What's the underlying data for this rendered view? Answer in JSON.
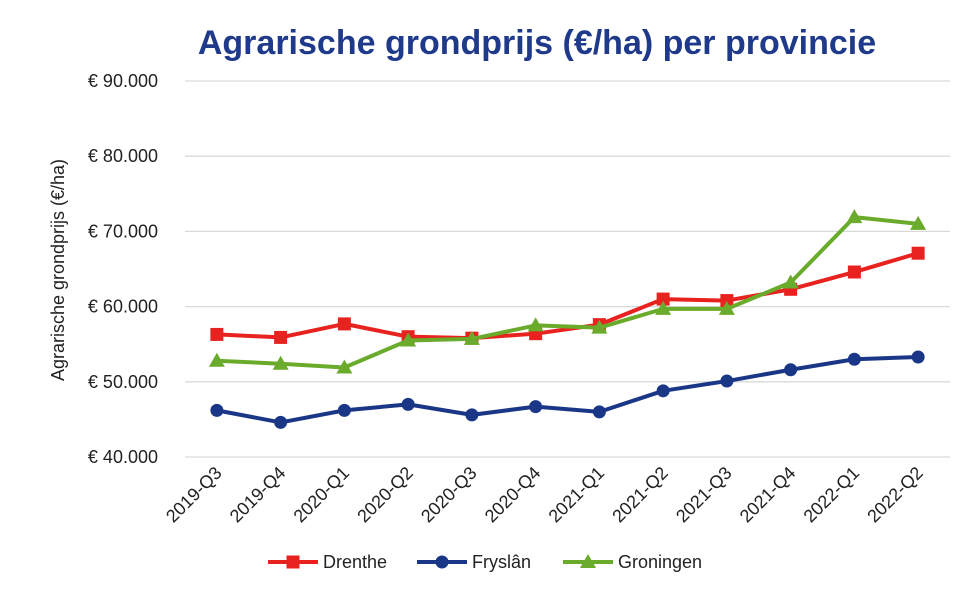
{
  "chart_data": {
    "type": "line",
    "title": "Agrarische grondprijs (€/ha) per provincie",
    "xlabel": "",
    "ylabel": "Agrarische grondprijs (€/ha)",
    "ylim": [
      40000,
      90000
    ],
    "yticks": [
      40000,
      50000,
      60000,
      70000,
      80000,
      90000
    ],
    "ytick_labels": [
      "€ 40.000",
      "€ 50.000",
      "€ 60.000",
      "€ 70.000",
      "€ 80.000",
      "€ 90.000"
    ],
    "categories": [
      "2019-Q3",
      "2019-Q4",
      "2020-Q1",
      "2020-Q2",
      "2020-Q3",
      "2020-Q4",
      "2021-Q1",
      "2021-Q2",
      "2021-Q3",
      "2021-Q4",
      "2022-Q1",
      "2022-Q2"
    ],
    "grid": true,
    "legend_position": "bottom",
    "series": [
      {
        "name": "Drenthe",
        "color": "#e8231f",
        "marker": "square",
        "values": [
          56300,
          55900,
          57700,
          56000,
          55800,
          56400,
          57600,
          61000,
          60800,
          62300,
          64600,
          67100
        ]
      },
      {
        "name": "Fryslân",
        "color": "#1a3787",
        "marker": "circle",
        "values": [
          46200,
          44600,
          46200,
          47000,
          45600,
          46700,
          46000,
          48800,
          50100,
          51600,
          53000,
          53300
        ]
      },
      {
        "name": "Groningen",
        "color": "#6aab2c",
        "marker": "triangle",
        "values": [
          52800,
          52400,
          51900,
          55500,
          55700,
          57500,
          57200,
          59700,
          59700,
          63200,
          71900,
          71000
        ]
      }
    ]
  }
}
